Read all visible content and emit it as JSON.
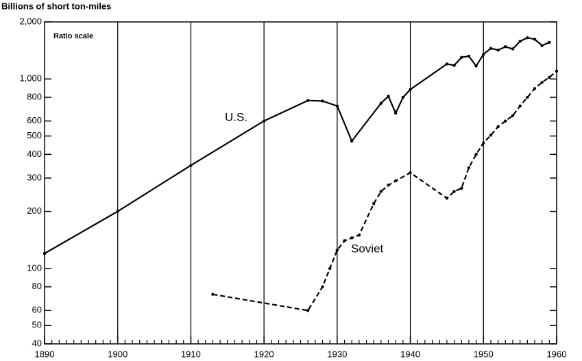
{
  "chart_data": {
    "type": "line",
    "ylabel": "Billions of short ton-miles",
    "annotations": [
      "Ratio scale"
    ],
    "log_y": true,
    "grid": "x",
    "xlim": [
      1890,
      1960
    ],
    "xticks": [
      1890,
      1900,
      1910,
      1920,
      1930,
      1940,
      1950,
      1960
    ],
    "ylim": [
      40,
      2000
    ],
    "yticks": [
      40,
      50,
      60,
      80,
      100,
      200,
      300,
      400,
      500,
      600,
      800,
      {
        "value": 1000,
        "label": "1,000"
      },
      {
        "value": 2000,
        "label": "2,000"
      }
    ],
    "series": [
      {
        "name": "U.S.",
        "color": "#000000",
        "dashed": false,
        "x": [
          1890,
          1900,
          1910,
          1920,
          1926,
          1928,
          1930,
          1932,
          1936,
          1937,
          1938,
          1939,
          1940,
          1945,
          1946,
          1947,
          1948,
          1949,
          1950,
          1951,
          1952,
          1953,
          1954,
          1955,
          1956,
          1957,
          1958,
          1959
        ],
        "values": [
          120,
          200,
          350,
          600,
          770,
          765,
          720,
          470,
          745,
          810,
          660,
          800,
          880,
          1200,
          1180,
          1300,
          1320,
          1170,
          1350,
          1450,
          1420,
          1480,
          1440,
          1580,
          1650,
          1620,
          1500,
          1560
        ]
      },
      {
        "name": "Soviet",
        "color": "#000000",
        "dashed": true,
        "x": [
          1913,
          1926,
          1928,
          1929,
          1930,
          1931,
          1932,
          1933,
          1935,
          1936,
          1937,
          1938,
          1940,
          1945,
          1946,
          1947,
          1948,
          1949,
          1950,
          1951,
          1952,
          1953,
          1954,
          1955,
          1956,
          1957,
          1958,
          1959,
          1960
        ],
        "values": [
          73,
          60,
          80,
          100,
          125,
          140,
          145,
          150,
          220,
          255,
          275,
          290,
          320,
          235,
          255,
          265,
          340,
          400,
          460,
          505,
          560,
          600,
          640,
          720,
          800,
          890,
          960,
          1020,
          1100
        ]
      }
    ]
  }
}
